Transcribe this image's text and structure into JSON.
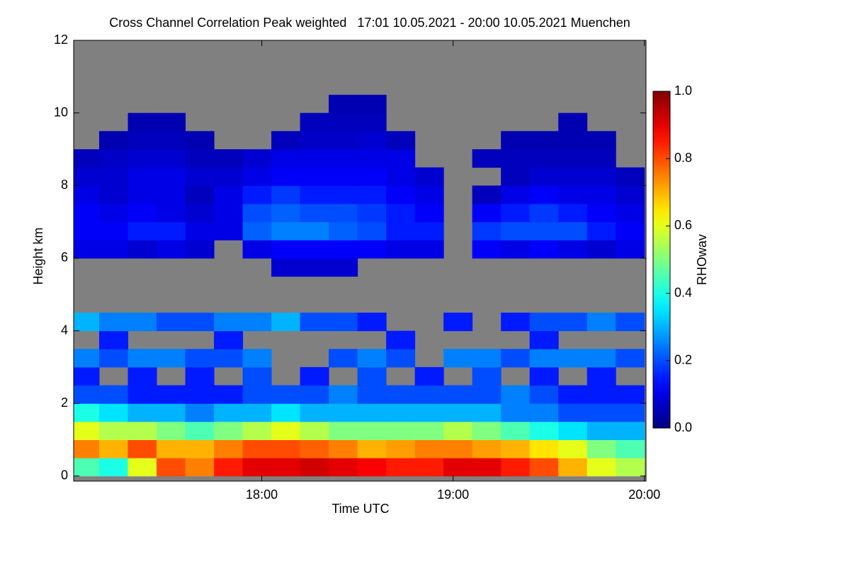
{
  "chart_data": {
    "type": "heatmap",
    "title": "Cross Channel Correlation Peak weighted   17:01 10.05.2021 - 20:00 10.05.2021 Muenchen",
    "x_label": "Time UTC",
    "y_label": "Height km",
    "colorbar_label": "RHOwav",
    "colormap": "jet",
    "nodata_color": "#808080",
    "xlim": [
      17.0167,
      20.0083
    ],
    "xticks": [
      {
        "value": 18,
        "label": "18:00"
      },
      {
        "value": 19,
        "label": "19:00"
      },
      {
        "value": 20,
        "label": "20:00"
      }
    ],
    "ylim": [
      -0.14,
      12
    ],
    "yticks": [
      0,
      2,
      4,
      6,
      8,
      10,
      12
    ],
    "clim": [
      0,
      1
    ],
    "cticks": [
      {
        "value": 0,
        "label": "0.0"
      },
      0.2,
      0.4,
      0.6,
      0.8,
      {
        "value": 1,
        "label": "1.0"
      }
    ],
    "x": [
      17.075,
      17.225,
      17.375,
      17.525,
      17.675,
      17.825,
      17.975,
      18.125,
      18.275,
      18.425,
      18.575,
      18.725,
      18.875,
      19.025,
      19.175,
      19.325,
      19.475,
      19.625,
      19.775,
      19.925
    ],
    "y": [
      0.25,
      0.75,
      1.25,
      1.75,
      2.25,
      2.75,
      3.25,
      3.75,
      4.25,
      4.75,
      5.25,
      5.75,
      6.25,
      6.75,
      7.25,
      7.75,
      8.25,
      8.75,
      9.25,
      9.75,
      10.25,
      10.75,
      11.25,
      11.75
    ],
    "values": [
      [
        0.45,
        0.4,
        0.6,
        0.8,
        0.75,
        0.85,
        0.9,
        0.9,
        0.92,
        0.9,
        0.88,
        0.85,
        0.85,
        0.9,
        0.9,
        0.85,
        0.8,
        0.7,
        0.6,
        0.55
      ],
      [
        0.75,
        0.7,
        0.8,
        0.7,
        0.7,
        0.75,
        0.8,
        0.8,
        0.78,
        0.75,
        0.7,
        0.72,
        0.75,
        0.75,
        0.72,
        0.7,
        0.65,
        0.6,
        0.5,
        0.45
      ],
      [
        0.6,
        0.55,
        0.55,
        0.5,
        0.45,
        0.5,
        0.55,
        0.6,
        0.55,
        0.5,
        0.5,
        0.5,
        0.5,
        0.55,
        0.5,
        0.45,
        0.4,
        0.35,
        0.3,
        0.3
      ],
      [
        0.4,
        0.35,
        0.3,
        0.3,
        0.25,
        0.3,
        0.3,
        0.35,
        0.3,
        0.3,
        0.3,
        0.3,
        0.3,
        0.3,
        0.3,
        0.25,
        0.25,
        0.2,
        0.2,
        0.2
      ],
      [
        0.2,
        0.2,
        0.15,
        0.15,
        0.15,
        0.15,
        0.2,
        0.2,
        0.2,
        0.25,
        0.2,
        0.2,
        0.2,
        0.2,
        0.2,
        0.25,
        0.2,
        0.15,
        0.15,
        0.15
      ],
      [
        0.15,
        null,
        0.15,
        null,
        0.15,
        null,
        0.2,
        null,
        0.15,
        null,
        0.2,
        null,
        0.15,
        null,
        0.2,
        null,
        0.15,
        null,
        0.15,
        null
      ],
      [
        0.25,
        0.2,
        0.25,
        0.25,
        0.2,
        0.2,
        0.25,
        null,
        null,
        0.2,
        0.25,
        0.2,
        null,
        0.25,
        0.25,
        0.2,
        0.25,
        0.25,
        0.25,
        0.2
      ],
      [
        null,
        0.15,
        null,
        null,
        null,
        0.15,
        null,
        null,
        null,
        null,
        null,
        0.15,
        null,
        null,
        null,
        null,
        0.15,
        null,
        null,
        null
      ],
      [
        0.3,
        0.25,
        0.25,
        0.2,
        0.2,
        0.25,
        0.25,
        0.3,
        0.2,
        0.2,
        0.15,
        null,
        null,
        0.15,
        null,
        0.15,
        0.2,
        0.2,
        0.25,
        0.2
      ],
      [
        null,
        null,
        null,
        null,
        null,
        null,
        null,
        null,
        null,
        null,
        null,
        null,
        null,
        null,
        null,
        null,
        null,
        null,
        null,
        null
      ],
      [
        null,
        null,
        null,
        null,
        null,
        null,
        null,
        null,
        null,
        null,
        null,
        null,
        null,
        null,
        null,
        null,
        null,
        null,
        null,
        null
      ],
      [
        null,
        null,
        null,
        null,
        null,
        null,
        null,
        0.08,
        0.08,
        0.08,
        null,
        null,
        null,
        null,
        null,
        null,
        null,
        null,
        null,
        null
      ],
      [
        0.1,
        0.1,
        0.08,
        0.1,
        0.08,
        null,
        0.1,
        0.12,
        0.12,
        0.12,
        0.12,
        0.1,
        0.1,
        null,
        0.12,
        0.1,
        0.12,
        0.1,
        0.08,
        0.1
      ],
      [
        0.12,
        0.12,
        0.15,
        0.15,
        0.1,
        0.1,
        0.22,
        0.25,
        0.25,
        0.22,
        0.2,
        0.15,
        0.15,
        null,
        0.18,
        0.2,
        0.2,
        0.2,
        0.15,
        0.12
      ],
      [
        0.12,
        0.1,
        0.12,
        0.1,
        0.08,
        0.1,
        0.2,
        0.22,
        0.2,
        0.2,
        0.18,
        0.15,
        0.12,
        null,
        0.12,
        0.15,
        0.18,
        0.15,
        0.12,
        0.1
      ],
      [
        0.1,
        0.08,
        0.1,
        0.1,
        0.06,
        0.1,
        0.15,
        0.18,
        0.15,
        0.15,
        0.15,
        0.12,
        0.1,
        null,
        0.06,
        0.1,
        0.12,
        0.1,
        0.1,
        0.08
      ],
      [
        0.08,
        0.08,
        0.1,
        0.1,
        0.08,
        0.08,
        0.1,
        0.12,
        0.12,
        0.12,
        0.12,
        0.1,
        0.08,
        null,
        null,
        0.06,
        0.08,
        0.08,
        0.08,
        0.06
      ],
      [
        0.06,
        0.07,
        0.08,
        0.08,
        0.06,
        0.06,
        0.08,
        0.1,
        0.1,
        0.1,
        0.1,
        0.1,
        null,
        null,
        0.06,
        0.06,
        0.06,
        0.06,
        0.06,
        null
      ],
      [
        null,
        0.05,
        0.06,
        0.06,
        0.05,
        null,
        null,
        0.06,
        0.07,
        0.07,
        0.08,
        0.06,
        null,
        null,
        null,
        0.05,
        0.05,
        0.05,
        0.05,
        null
      ],
      [
        null,
        null,
        0.05,
        0.05,
        null,
        null,
        null,
        null,
        0.06,
        0.06,
        0.06,
        null,
        null,
        null,
        null,
        null,
        null,
        0.05,
        null,
        null
      ],
      [
        null,
        null,
        null,
        null,
        null,
        null,
        null,
        null,
        null,
        0.05,
        0.05,
        null,
        null,
        null,
        null,
        null,
        null,
        null,
        null,
        null
      ],
      [
        null,
        null,
        null,
        null,
        null,
        null,
        null,
        null,
        null,
        null,
        null,
        null,
        null,
        null,
        null,
        null,
        null,
        null,
        null,
        null
      ],
      [
        null,
        null,
        null,
        null,
        null,
        null,
        null,
        null,
        null,
        null,
        null,
        null,
        null,
        null,
        null,
        null,
        null,
        null,
        null,
        null
      ],
      [
        null,
        null,
        null,
        null,
        null,
        null,
        null,
        null,
        null,
        null,
        null,
        null,
        null,
        null,
        null,
        null,
        null,
        null,
        null,
        null
      ]
    ]
  }
}
